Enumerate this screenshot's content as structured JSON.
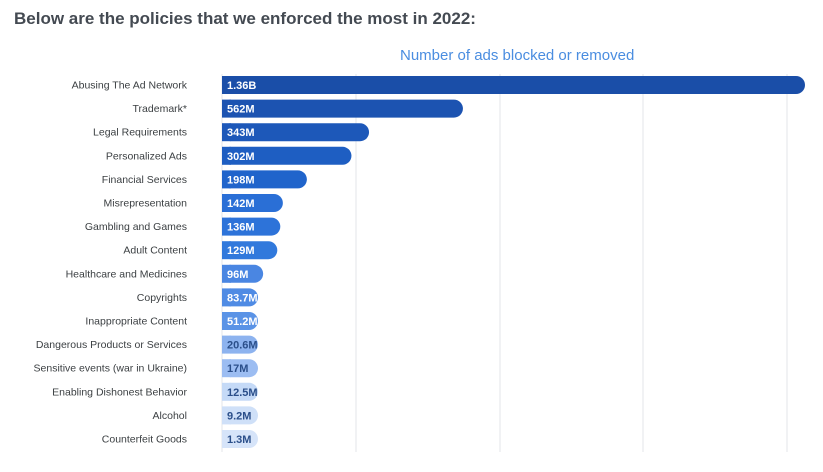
{
  "heading": "Below are the policies that we enforced the most in 2022:",
  "chart_data": {
    "type": "bar",
    "orientation": "horizontal",
    "title": "Number of ads blocked or removed",
    "xlabel": "",
    "ylabel": "",
    "grid": true,
    "categories": [
      "Abusing The Ad Network",
      "Trademark*",
      "Legal Requirements",
      "Personalized Ads",
      "Financial Services",
      "Misrepresentation",
      "Gambling and Games",
      "Adult Content",
      "Healthcare and Medicines",
      "Copyrights",
      "Inappropriate Content",
      "Dangerous Products or Services",
      "Sensitive events (war in Ukraine)",
      "Enabling Dishonest Behavior",
      "Alcohol",
      "Counterfeit Goods"
    ],
    "values": [
      1360,
      562,
      343,
      302,
      198,
      142,
      136,
      129,
      96,
      83.7,
      51.2,
      20.6,
      17,
      12.5,
      9.2,
      1.3
    ],
    "value_labels": [
      "1.36B",
      "562M",
      "343M",
      "302M",
      "198M",
      "142M",
      "136M",
      "129M",
      "96M",
      "83.7M",
      "51.2M",
      "20.6M",
      "17M",
      "12.5M",
      "9.2M",
      "1.3M"
    ],
    "unit": "millions of ads",
    "bar_colors": [
      "#1a4ea8",
      "#1c53b1",
      "#1d58b9",
      "#1e5ec2",
      "#2064cb",
      "#2a6fd6",
      "#2d73d9",
      "#3179dc",
      "#4a86e2",
      "#4f8be4",
      "#5a93e6",
      "#8db3ef",
      "#9cbdf2",
      "#c5daf7",
      "#cfe0f8",
      "#d6e4f9"
    ],
    "label_colors": [
      "#ffffff",
      "#ffffff",
      "#ffffff",
      "#ffffff",
      "#ffffff",
      "#ffffff",
      "#ffffff",
      "#ffffff",
      "#ffffff",
      "#ffffff",
      "#ffffff",
      "#2b4f8a",
      "#2b4f8a",
      "#2b4f8a",
      "#2b4f8a",
      "#2b4f8a"
    ]
  }
}
